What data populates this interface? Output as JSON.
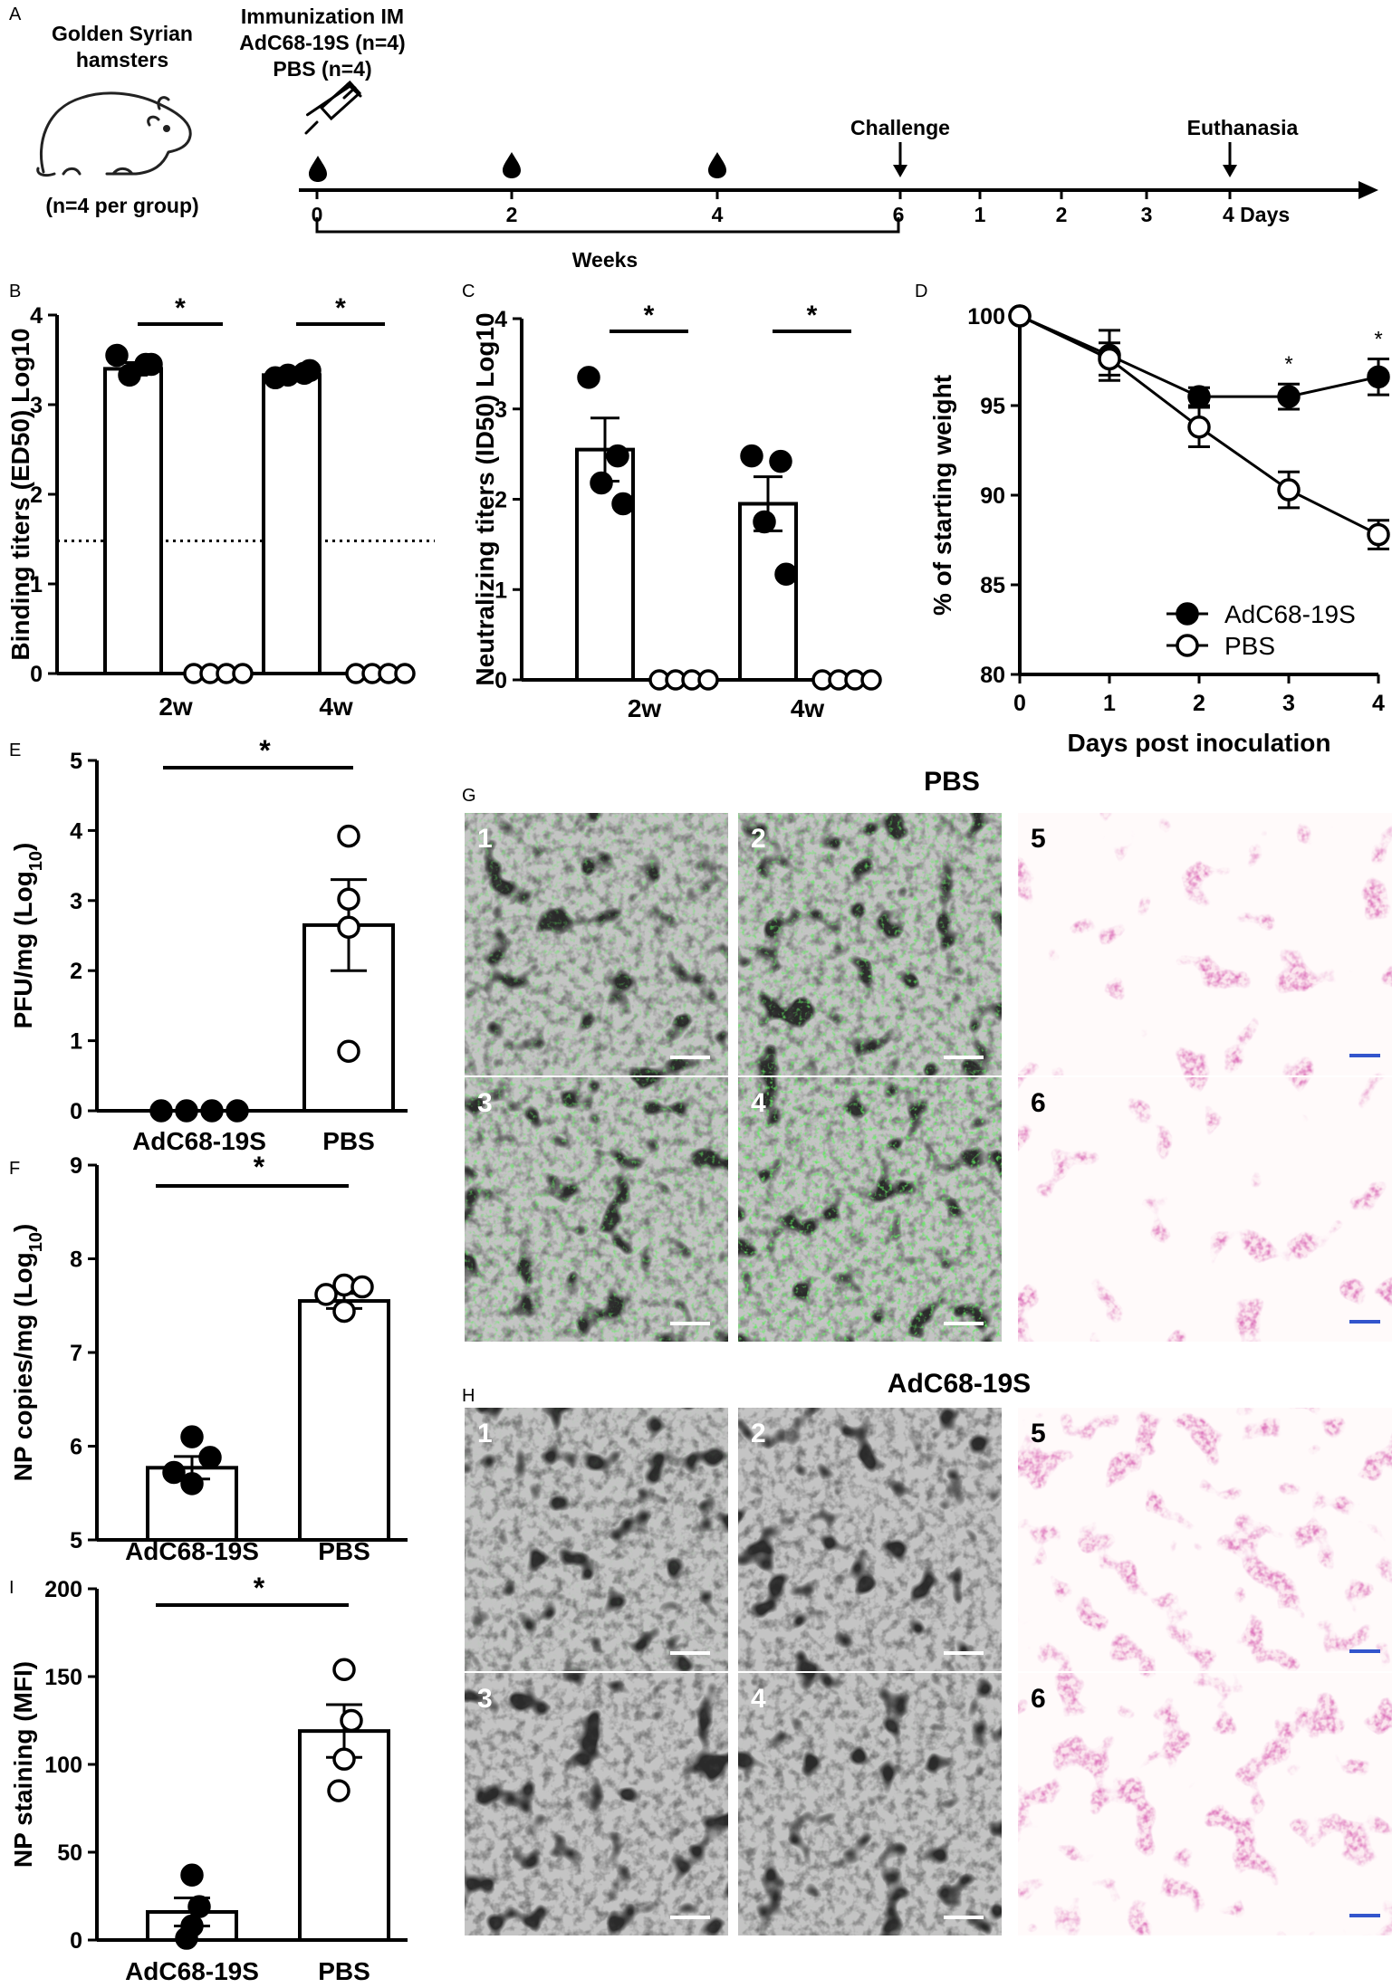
{
  "panel_letters": {
    "A": "A",
    "B": "B",
    "C": "C",
    "D": "D",
    "E": "E",
    "F": "F",
    "G": "G",
    "H": "H",
    "I": "I"
  },
  "timeline": {
    "species": [
      "Golden Syrian",
      "hamsters"
    ],
    "group_size": "(n=4 per group)",
    "immunization": [
      "Immunization IM",
      "AdC68-19S (n=4)",
      "PBS (n=4)"
    ],
    "challenge": "Challenge",
    "euthanasia": "Euthanasia",
    "week_ticks": [
      "0",
      "2",
      "4",
      "6"
    ],
    "day_ticks": [
      "1",
      "2",
      "3",
      "4 Days"
    ],
    "weeks_label": "Weeks"
  },
  "image_panels": {
    "G": {
      "title": "PBS",
      "tiles": [
        {
          "label": "1",
          "kind": "fluorescence",
          "intensity": 0.5
        },
        {
          "label": "2",
          "kind": "fluorescence",
          "intensity": 0.75
        },
        {
          "label": "5",
          "kind": "he",
          "density": "dense"
        },
        {
          "label": "3",
          "kind": "fluorescence",
          "intensity": 0.65
        },
        {
          "label": "4",
          "kind": "fluorescence",
          "intensity": 0.95
        },
        {
          "label": "6",
          "kind": "he",
          "density": "dense"
        }
      ]
    },
    "H": {
      "title": "AdC68-19S",
      "tiles": [
        {
          "label": "1",
          "kind": "fluorescence",
          "intensity": 0.05
        },
        {
          "label": "2",
          "kind": "fluorescence",
          "intensity": 0.0
        },
        {
          "label": "5",
          "kind": "he",
          "density": "open"
        },
        {
          "label": "3",
          "kind": "fluorescence",
          "intensity": 0.0
        },
        {
          "label": "4",
          "kind": "fluorescence",
          "intensity": 0.02
        },
        {
          "label": "6",
          "kind": "he",
          "density": "open"
        }
      ]
    }
  },
  "colors": {
    "green": "#2bd12b",
    "he_pink": "#d7589c",
    "he_bg": "#fbe6ee",
    "scale_white": "#ffffff",
    "scale_blue": "#3355cc"
  },
  "chart_data": [
    {
      "id": "B",
      "type": "bar",
      "ylabel": "Binding titers (ED50) Log10",
      "ylim": [
        0,
        4
      ],
      "yticks": [
        0,
        1,
        2,
        3,
        4
      ],
      "categories": [
        "2w",
        "4w"
      ],
      "series": [
        {
          "name": "AdC68-19S",
          "filled": true,
          "values": [
            3.4,
            3.33
          ],
          "sem": [
            0.07,
            0.03
          ],
          "points": [
            [
              3.55,
              3.45,
              3.33,
              3.45
            ],
            [
              3.3,
              3.35,
              3.33,
              3.38
            ]
          ]
        },
        {
          "name": "PBS",
          "filled": false,
          "values": [
            0,
            0
          ],
          "sem": [
            0,
            0
          ],
          "points": [
            [
              0,
              0,
              0,
              0
            ],
            [
              0,
              0,
              0,
              0
            ]
          ]
        }
      ],
      "dotted_line": 1.48,
      "significance": [
        "*",
        "*"
      ]
    },
    {
      "id": "C",
      "type": "bar",
      "ylabel": "Neutralizing titers (ID50) Log10",
      "ylim": [
        0,
        4
      ],
      "yticks": [
        0,
        1,
        2,
        3,
        4
      ],
      "categories": [
        "2w",
        "4w"
      ],
      "series": [
        {
          "name": "AdC68-19S",
          "filled": true,
          "values": [
            2.55,
            1.95
          ],
          "sem": [
            0.35,
            0.3
          ],
          "points": [
            [
              3.35,
              2.48,
              2.18,
              1.95
            ],
            [
              2.48,
              2.42,
              1.75,
              1.17
            ]
          ]
        },
        {
          "name": "PBS",
          "filled": false,
          "values": [
            0,
            0
          ],
          "sem": [
            0,
            0
          ],
          "points": [
            [
              0,
              0,
              0,
              0
            ],
            [
              0,
              0,
              0,
              0
            ]
          ]
        }
      ],
      "significance": [
        "*",
        "*"
      ]
    },
    {
      "id": "D",
      "type": "line",
      "xlabel": "Days post inoculation",
      "ylabel": "% of starting weight",
      "x": [
        0,
        1,
        2,
        3,
        4
      ],
      "ylim": [
        80,
        100
      ],
      "yticks": [
        80,
        85,
        90,
        95,
        100
      ],
      "series": [
        {
          "name": "AdC68-19S",
          "filled": true,
          "values": [
            100,
            97.8,
            95.5,
            95.5,
            96.6
          ],
          "sem": [
            0,
            1.4,
            0.5,
            0.7,
            1.0
          ]
        },
        {
          "name": "PBS",
          "filled": false,
          "values": [
            100,
            97.6,
            93.8,
            90.3,
            87.8
          ],
          "sem": [
            0,
            0.9,
            1.1,
            1.0,
            0.8
          ]
        }
      ],
      "significance_at": [
        3,
        4
      ],
      "significance_marks": [
        "*",
        "*"
      ]
    },
    {
      "id": "E",
      "type": "bar",
      "ylabel": "PFU/mg (Log",
      "ylabel_sub": "10",
      "ylabel_tail": ")",
      "ylim": [
        0,
        5
      ],
      "yticks": [
        0,
        1,
        2,
        3,
        4,
        5
      ],
      "categories": [
        "AdC68-19S",
        "PBS"
      ],
      "values": [
        0,
        2.65
      ],
      "sem": [
        0,
        0.65
      ],
      "points": [
        [
          0,
          0,
          0,
          0
        ],
        [
          3.92,
          3.02,
          2.62,
          0.85
        ]
      ],
      "filled": [
        true,
        false
      ],
      "significance": "*"
    },
    {
      "id": "F",
      "type": "bar",
      "ylabel": "NP copies/mg (Log",
      "ylabel_sub": "10",
      "ylabel_tail": ")",
      "ylim": [
        5,
        9
      ],
      "yticks": [
        5,
        6,
        7,
        8,
        9
      ],
      "categories": [
        "AdC68-19S",
        "PBS"
      ],
      "values": [
        5.77,
        7.55
      ],
      "sem": [
        0.12,
        0.08
      ],
      "points": [
        [
          6.1,
          5.88,
          5.72,
          5.6
        ],
        [
          7.72,
          7.7,
          7.62,
          7.44
        ]
      ],
      "filled": [
        true,
        false
      ],
      "significance": "*"
    },
    {
      "id": "I",
      "type": "bar",
      "ylabel": "NP staining (MFI)",
      "ylim": [
        0,
        200
      ],
      "yticks": [
        0,
        50,
        100,
        150,
        200
      ],
      "categories": [
        "AdC68-19S",
        "PBS"
      ],
      "values": [
        16,
        119
      ],
      "sem": [
        8,
        15
      ],
      "points": [
        [
          37,
          19,
          8,
          1
        ],
        [
          154,
          125,
          103,
          85
        ]
      ],
      "filled": [
        true,
        false
      ],
      "significance": "*"
    }
  ]
}
